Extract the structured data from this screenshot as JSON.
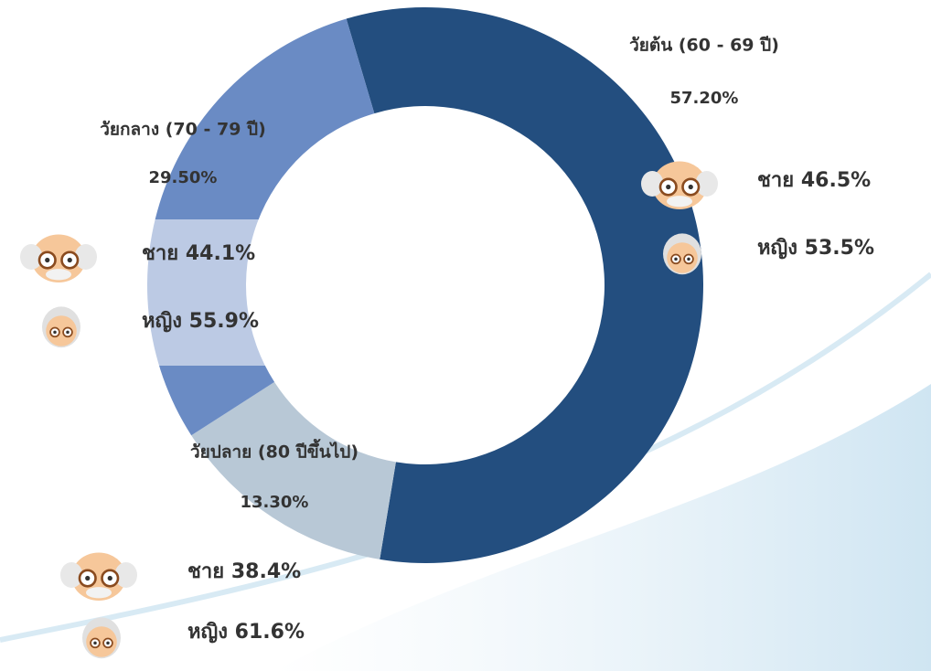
{
  "chart_data": {
    "type": "donut",
    "categories": [
      "วัยต้น (60 - 69 ปี)",
      "วัยปลาย (80 ปีขึ้นไป)",
      "วัยกลาง (70 - 79 ปี)"
    ],
    "values": [
      57.2,
      13.3,
      29.5
    ],
    "value_labels": [
      "57.20%",
      "13.30%",
      "29.50%"
    ],
    "colors": [
      "#234e7f",
      "#b8c8d6",
      "#6a8bc4"
    ],
    "breakdown": [
      {
        "categories": [
          "ชาย",
          "หญิง"
        ],
        "values": [
          46.5,
          53.5
        ],
        "value_labels": [
          "46.5%",
          "53.5%"
        ]
      },
      {
        "categories": [
          "ชาย",
          "หญิง"
        ],
        "values": [
          38.4,
          61.6
        ],
        "value_labels": [
          "38.4%",
          "61.6%"
        ]
      },
      {
        "categories": [
          "ชาย",
          "หญิง"
        ],
        "values": [
          44.1,
          55.9
        ],
        "value_labels": [
          "44.1%",
          "55.9%"
        ]
      }
    ]
  }
}
